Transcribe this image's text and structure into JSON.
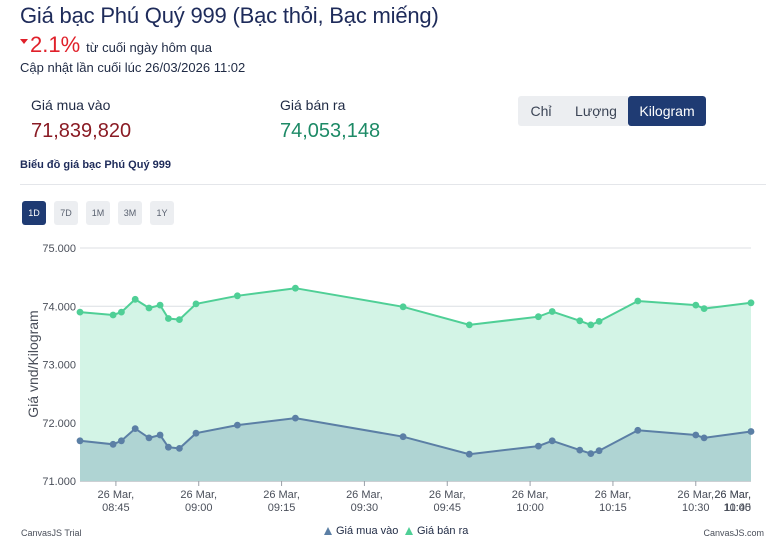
{
  "header": {
    "title": "Giá bạc Phú Quý 999 (Bạc thỏi, Bạc miếng)",
    "change_pct": "2.1%",
    "change_text": "từ cuối ngày hôm qua",
    "change_color": "#e0202a",
    "updated": "Cập nhật lần cuối lúc 26/03/2026 11:02"
  },
  "prices": {
    "buy_label": "Giá mua vào",
    "buy_value": "71,839,820",
    "buy_color": "#8a1b24",
    "sell_label": "Giá bán ra",
    "sell_value": "74,053,148",
    "sell_color": "#1d8a66"
  },
  "unit_tabs": {
    "items": [
      "Chỉ",
      "Lượng",
      "Kilogram"
    ],
    "selected": "Kilogram",
    "active_color": "#1f3b73"
  },
  "chart_caption": "Biểu đồ giá bạc Phú Quý 999",
  "range_tabs": {
    "items": [
      "1D",
      "7D",
      "1M",
      "3M",
      "1Y"
    ],
    "selected": "1D"
  },
  "chart_data": {
    "type": "area",
    "title": "",
    "xlabel": "",
    "ylabel": "Giá vnd/Kilogram",
    "ylim": [
      71000,
      75000
    ],
    "y_ticks": [
      75000,
      74000,
      73000,
      72000,
      71000
    ],
    "y_tick_labels": [
      "75.000",
      "74.000",
      "73.000",
      "72.000",
      "71.000"
    ],
    "xlim_minutes": [
      8.5,
      130
    ],
    "x_ticks_minutes": [
      15,
      30,
      45,
      60,
      75,
      90,
      105,
      120
    ],
    "x_tick_labels": [
      [
        "26 Mar,",
        "08:45"
      ],
      [
        "26 Mar,",
        "09:00"
      ],
      [
        "26 Mar,",
        "09:15"
      ],
      [
        "26 Mar,",
        "09:30"
      ],
      [
        "26 Mar,",
        "09:45"
      ],
      [
        "26 Mar,",
        "10:00"
      ],
      [
        "26 Mar,",
        "10:15"
      ],
      [
        "26 Mar,",
        "10:30"
      ],
      [
        "26 Mar,",
        "10:45"
      ],
      [
        "26 Mar,",
        "11:00"
      ]
    ],
    "x_ticks_all_minutes": [
      45,
      60,
      75,
      90,
      105,
      120,
      135,
      150,
      165,
      180
    ],
    "x_minutes_note": "minutes after 08:00",
    "series": [
      {
        "name": "Giá bán ra",
        "color": "#4fcf96",
        "fill": "#d3f4e6",
        "x": [
          8.5,
          14.5,
          16,
          18.5,
          21,
          23,
          24.5,
          26.5,
          29.5,
          37,
          47.5,
          67,
          79,
          91.5,
          94,
          99,
          101,
          102.5,
          109.5,
          120,
          121.5,
          130
        ],
        "y": [
          73900,
          73850,
          73900,
          74120,
          73970,
          74020,
          73790,
          73770,
          74040,
          74180,
          74310,
          73990,
          73680,
          73820,
          73910,
          73750,
          73680,
          73740,
          74090,
          74020,
          73960,
          74060
        ]
      },
      {
        "name": "Giá mua vào",
        "color": "#5b7fa5",
        "fill": "#afd4d3",
        "x": [
          8.5,
          14.5,
          16,
          18.5,
          21,
          23,
          24.5,
          26.5,
          29.5,
          37,
          47.5,
          67,
          79,
          91.5,
          94,
          99,
          101,
          102.5,
          109.5,
          120,
          121.5,
          130
        ],
        "y": [
          71690,
          71630,
          71690,
          71900,
          71740,
          71790,
          71580,
          71560,
          71820,
          71960,
          72080,
          71760,
          71460,
          71600,
          71690,
          71530,
          71470,
          71520,
          71870,
          71790,
          71740,
          71850
        ]
      }
    ],
    "legend": [
      "Giá mua vào",
      "Giá bán ra"
    ],
    "legend_colors": [
      "#5b7fa5",
      "#4fcf96"
    ],
    "legend_position": "bottom-center",
    "grid": true
  },
  "credits": {
    "left": "CanvasJS Trial",
    "right": "CanvasJS.com"
  }
}
